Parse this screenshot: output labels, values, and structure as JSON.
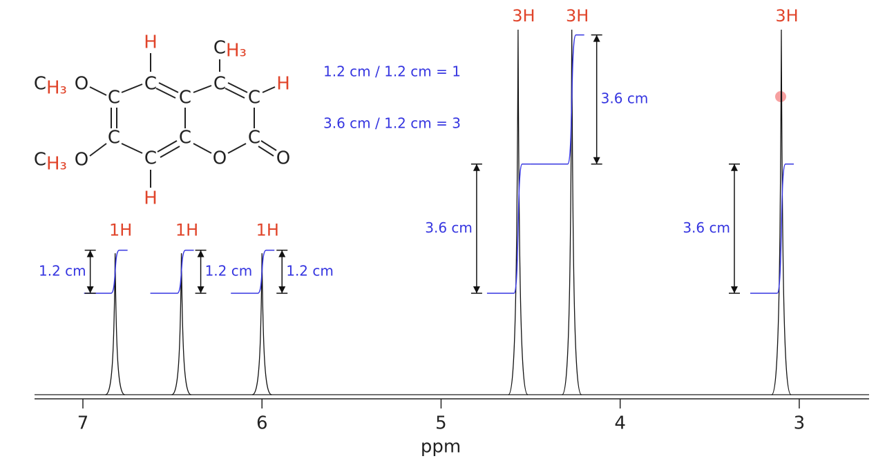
{
  "chart_data": {
    "type": "nmr",
    "xlabel": "ppm",
    "xlim": [
      7.27,
      2.61
    ],
    "xticks": [
      7,
      6,
      5,
      4,
      3
    ],
    "peaks": {
      "x": [
        6.82,
        6.45,
        6.0,
        4.57,
        4.27,
        3.1
      ],
      "labels": [
        "1H",
        "1H",
        "1H",
        "3H",
        "3H",
        "3H"
      ]
    },
    "integrals": {
      "values": [
        1.2,
        1.2,
        1.2,
        3.6,
        3.6,
        3.6
      ],
      "value_labels": [
        "1.2 cm",
        "1.2 cm",
        "1.2 cm",
        "3.6 cm",
        "3.6 cm",
        "3.6 cm"
      ]
    },
    "annotations": [
      "1.2 cm / 1.2 cm = 1",
      "3.6 cm / 1.2 cm = 3"
    ],
    "structure": {
      "atoms": [
        "H",
        "C",
        "H₃",
        "C",
        "C",
        "C",
        "H",
        "C",
        "H₃",
        "O",
        "C",
        "C",
        "C",
        "C",
        "C",
        "O",
        "O",
        "C",
        "H",
        "C",
        "H₃",
        "O"
      ]
    }
  }
}
